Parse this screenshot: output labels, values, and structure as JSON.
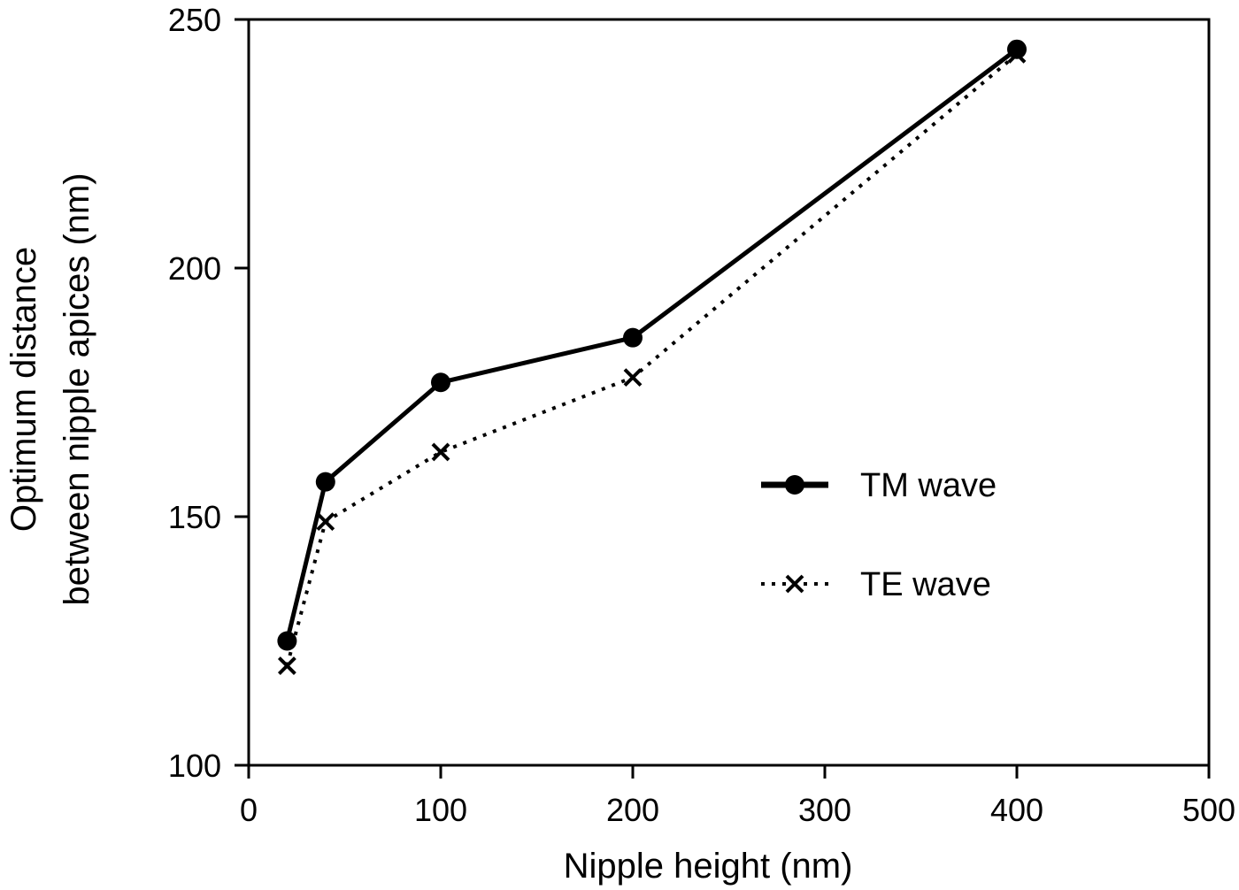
{
  "chart_data": {
    "type": "line",
    "title": "",
    "xlabel": "Nipple height (nm)",
    "ylabel_lines": [
      "Optimum distance",
      "between nipple apices (nm)"
    ],
    "xlim": [
      0,
      500
    ],
    "ylim": [
      100,
      250
    ],
    "xticks": [
      0,
      100,
      200,
      300,
      400,
      500
    ],
    "yticks": [
      100,
      150,
      200,
      250
    ],
    "xtick_labels": [
      "0",
      "100",
      "200",
      "300",
      "400",
      "500"
    ],
    "ytick_labels": [
      "100",
      "150",
      "200",
      "250"
    ],
    "grid": false,
    "legend_placement": "center-right",
    "series": [
      {
        "name": "TM wave",
        "style": "solid",
        "marker": "filled-circle",
        "color": "#000000",
        "x": [
          20,
          40,
          100,
          200,
          400
        ],
        "y": [
          125,
          157,
          177,
          186,
          244
        ]
      },
      {
        "name": "TE wave",
        "style": "dotted",
        "marker": "x",
        "color": "#000000",
        "x": [
          20,
          40,
          100,
          200,
          400
        ],
        "y": [
          120,
          149,
          163,
          178,
          243
        ]
      }
    ]
  }
}
